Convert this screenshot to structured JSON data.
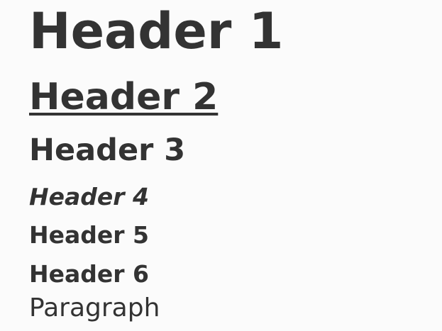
{
  "headings": {
    "h1": "Header 1",
    "h2": "Header 2",
    "h3": "Header 3",
    "h4": "Header 4",
    "h5": "Header 5",
    "h6": "Header 6"
  },
  "paragraph": "Paragraph",
  "colors": {
    "text": "#333333",
    "background": "#fbfbfb"
  }
}
